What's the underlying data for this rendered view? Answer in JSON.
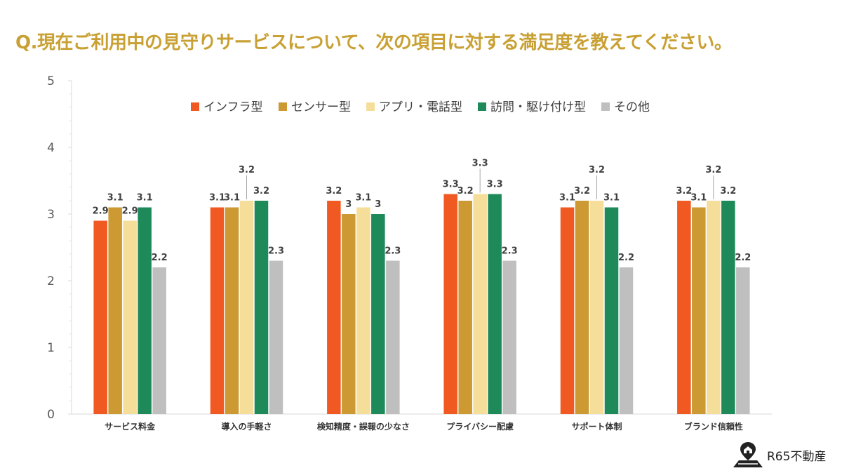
{
  "title": "Q.現在ご利用中の見守りサービスについて、次の項目に対する満足度を教えてください。",
  "brand": {
    "name": "R65不動産"
  },
  "chart_data": {
    "type": "bar",
    "categories": [
      "サービス料金",
      "導入の手軽さ",
      "検知精度・誤報の少なさ",
      "プライバシー配慮",
      "サポート体制",
      "ブランド信頼性"
    ],
    "series": [
      {
        "name": "インフラ型",
        "color": "#f05a22",
        "values": [
          2.9,
          3.1,
          3.2,
          3.3,
          3.1,
          3.2
        ]
      },
      {
        "name": "センサー型",
        "color": "#cc9933",
        "values": [
          3.1,
          3.1,
          3.0,
          3.2,
          3.2,
          3.1
        ]
      },
      {
        "name": "アプリ・電話型",
        "color": "#f5dd9a",
        "values": [
          2.9,
          3.2,
          3.1,
          3.3,
          3.2,
          3.2
        ]
      },
      {
        "name": "訪問・駆け付け型",
        "color": "#1e8a5a",
        "values": [
          3.1,
          3.2,
          3.0,
          3.3,
          3.1,
          3.2
        ]
      },
      {
        "name": "その他",
        "color": "#bfbfbf",
        "values": [
          2.2,
          2.3,
          2.3,
          2.3,
          2.2,
          2.2
        ]
      }
    ],
    "value_labels": [
      [
        "2.9",
        "3.1",
        "2.9",
        "3.1",
        "2.2"
      ],
      [
        "3.1",
        "3.1",
        "3.2",
        "3.2",
        "2.3"
      ],
      [
        "3.2",
        "3",
        "3.1",
        "3",
        "2.3"
      ],
      [
        "3.3",
        "3.2",
        "3.3",
        "3.3",
        "2.3"
      ],
      [
        "3.1",
        "3.2",
        "3.2",
        "3.1",
        "2.2"
      ],
      [
        "3.2",
        "3.1",
        "3.2",
        "3.2",
        "2.2"
      ]
    ],
    "ylim": [
      0,
      5
    ],
    "yticks": [
      "0",
      "1",
      "2",
      "3",
      "4",
      "5"
    ],
    "grid": false,
    "legend": "top"
  }
}
